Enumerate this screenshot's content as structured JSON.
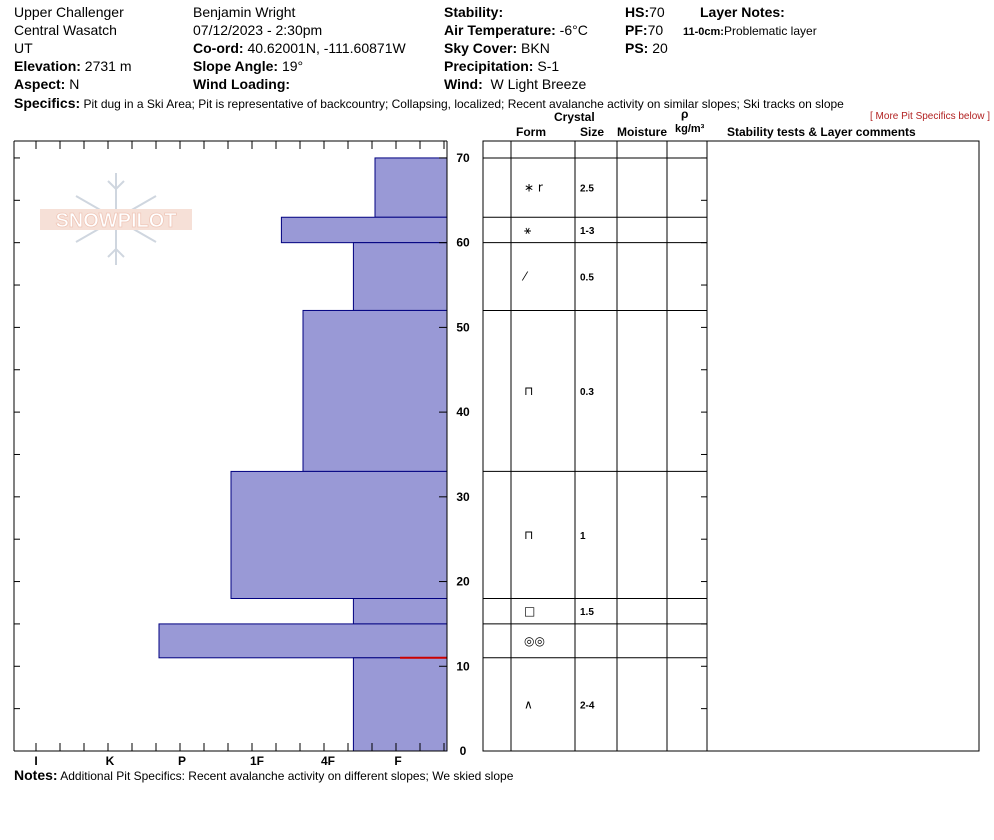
{
  "header": {
    "location": "Upper Challenger",
    "range": "Central Wasatch",
    "state": "UT",
    "elevation_label": "Elevation:",
    "elevation": "2731 m",
    "aspect_label": "Aspect:",
    "aspect": "N",
    "observer": "Benjamin Wright",
    "datetime": "07/12/2023 - 2:30pm",
    "coord_label": "Co-ord:",
    "coord": "40.62001N, -111.60871W",
    "slope_label": "Slope Angle:",
    "slope": "19°",
    "wind_loading_label": "Wind Loading:",
    "wind_loading": "",
    "stability_label": "Stability:",
    "stability": "",
    "air_temp_label": "Air Temperature:",
    "air_temp": "-6°C",
    "sky_label": "Sky Cover:",
    "sky": "BKN",
    "precip_label": "Precipitation:",
    "precip": "S-1",
    "wind_label": "Wind:",
    "wind": "W Light Breeze",
    "hs_label": "HS:",
    "hs": "70",
    "pf_label": "PF:",
    "pf": "70",
    "ps_label": "PS:",
    "ps": "20",
    "layer_notes_label": "Layer Notes:",
    "layer_note_range": "11-0cm:",
    "layer_note_text": "Problematic layer",
    "specifics_label": "Specifics:",
    "specifics": "Pit dug in a Ski Area; Pit is representative of backcountry; Collapsing, localized; Recent avalanche activity on similar slopes; Ski tracks on slope",
    "more_link": "[ More Pit Specifics below ]"
  },
  "logo": {
    "text": "SNOWPILOT"
  },
  "table": {
    "crystal_label": "Crystal",
    "form_label": "Form",
    "size_label": "Size",
    "moisture_label": "Moisture",
    "rho_label": "ρ",
    "density_unit": "kg/m³",
    "comments_label": "Stability tests & Layer comments"
  },
  "notes": {
    "label": "Notes:",
    "text": "Additional Pit Specifics: Recent avalanche activity on different slopes; We skied slope"
  },
  "colors": {
    "hardness_fill": "#9999d6",
    "hardness_stroke": "#000080",
    "critical": "#cc0000"
  },
  "chart_data": {
    "type": "bar",
    "orientation": "horizontal",
    "x_axis": {
      "ticks": [
        "I",
        "K",
        "P",
        "1F",
        "4F",
        "F"
      ],
      "direction": "reversed"
    },
    "y_axis": {
      "ticks": [
        0,
        10,
        20,
        30,
        40,
        50,
        60,
        70
      ],
      "ylim": [
        0,
        72
      ]
    },
    "layers": [
      {
        "top": 70,
        "bottom": 63,
        "hardness": "F",
        "hardness_value": 1,
        "form": "*r",
        "size": "2.5"
      },
      {
        "top": 63,
        "bottom": 60,
        "hardness": "4F+",
        "hardness_value": 2.3,
        "form": "precip-decomp",
        "size": "1-3"
      },
      {
        "top": 60,
        "bottom": 52,
        "hardness": "F+",
        "hardness_value": 1.3,
        "form": "decomposing",
        "size": "0.5"
      },
      {
        "top": 52,
        "bottom": 33,
        "hardness": "4F",
        "hardness_value": 2,
        "form": "rounded-facet",
        "size": "0.3"
      },
      {
        "top": 33,
        "bottom": 18,
        "hardness": "1F",
        "hardness_value": 3,
        "form": "rounded-facet",
        "size": "1"
      },
      {
        "top": 18,
        "bottom": 15,
        "hardness": "F+",
        "hardness_value": 1.3,
        "form": "faceted",
        "size": "1.5"
      },
      {
        "top": 15,
        "bottom": 11,
        "hardness": "P",
        "hardness_value": 4,
        "form": "melt-freeze",
        "size": ""
      },
      {
        "top": 11,
        "bottom": 0,
        "hardness": "F+",
        "hardness_value": 1.3,
        "form": "depth-hoar",
        "size": "2-4"
      }
    ],
    "critical_layer_depth": 11
  }
}
